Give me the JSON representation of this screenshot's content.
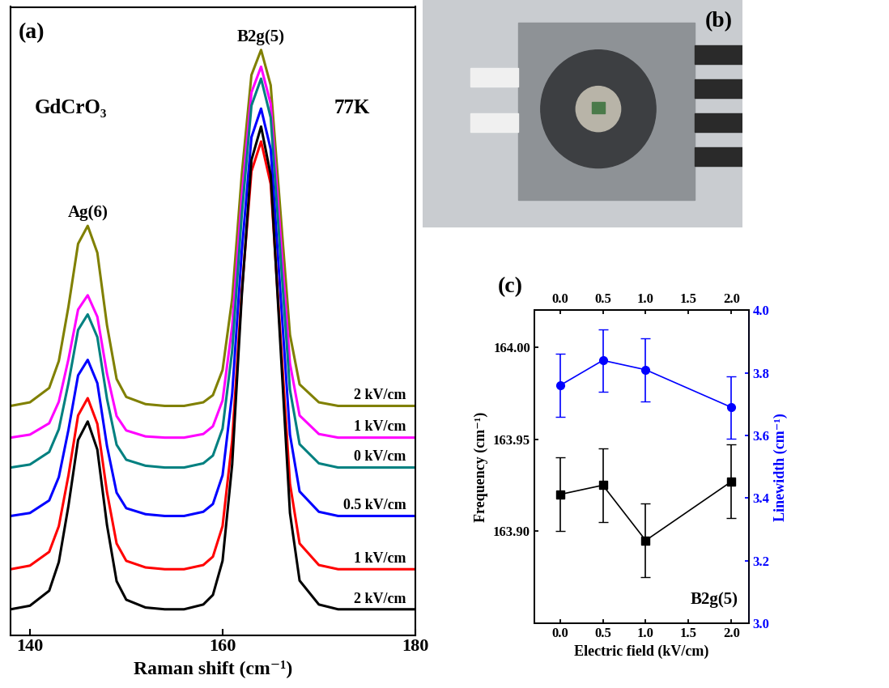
{
  "chart_data": [
    {
      "type": "line",
      "panel": "(a)",
      "x_label": "Raman shift (cm⁻¹)",
      "compound": "GdCrO₃",
      "temperature": "77K",
      "peaks": [
        {
          "label": "Ag(6)",
          "x": 146
        },
        {
          "label": "B2g(5)",
          "x": 164
        }
      ],
      "xlim": [
        138,
        180
      ],
      "xticks": [
        140,
        160,
        180
      ],
      "ylim": [
        0,
        105
      ],
      "yticks": [],
      "tick_labels": "x",
      "x": [
        138,
        140,
        142,
        143,
        144,
        145,
        146,
        147,
        148,
        149,
        150,
        152,
        154,
        156,
        158,
        159,
        160,
        161,
        162,
        163,
        164,
        165,
        166,
        167,
        168,
        170,
        172,
        174,
        176,
        178,
        180
      ],
      "series": [
        {
          "name": "2 kV/cm",
          "color": "#808000",
          "values": [
            38.3,
            38.9,
            41.3,
            45.8,
            54.9,
            65.4,
            68.4,
            63.9,
            51.8,
            42.8,
            39.8,
            38.6,
            38.3,
            38.3,
            38.9,
            40.1,
            44.3,
            56.2,
            77,
            93.6,
            97.8,
            91.9,
            71,
            50.2,
            41.9,
            38.9,
            38.3,
            38.3,
            38.3,
            38.3,
            38.3
          ]
        },
        {
          "name": "1 kV/cm",
          "color": "#ff00ff",
          "values": [
            33,
            33.5,
            35.4,
            39,
            46.1,
            54.4,
            56.8,
            53.2,
            43.7,
            36.6,
            34.2,
            33.2,
            33,
            33,
            33.6,
            34.9,
            39.2,
            51.6,
            73.3,
            90.7,
            95,
            88.8,
            67.1,
            45.4,
            36.7,
            33.6,
            33,
            33,
            33,
            33,
            33
          ]
        },
        {
          "name": "0 kV/cm",
          "color": "#008080",
          "values": [
            28,
            28.5,
            30.6,
            34.4,
            42.1,
            51.0,
            53.6,
            49.8,
            39.5,
            31.8,
            29.3,
            28.3,
            28,
            28,
            28.7,
            30,
            34.5,
            47.5,
            70.3,
            88.5,
            93,
            86.5,
            63.8,
            41,
            31.9,
            28.7,
            28,
            28,
            28,
            28,
            28
          ]
        },
        {
          "name": "0.5 kV/cm",
          "color": "#0000ff",
          "values": [
            19.9,
            20.4,
            22.5,
            26.4,
            34.3,
            43.4,
            46.0,
            42.1,
            31.6,
            23.8,
            21.2,
            20.2,
            19.9,
            19.9,
            20.6,
            21.9,
            26.7,
            40.3,
            64.2,
            83.2,
            88.0,
            81.2,
            57.4,
            33.5,
            24.0,
            20.6,
            19.9,
            19.9,
            19.9,
            19.9,
            19.9
          ]
        },
        {
          "name": "1 kV/cm",
          "color": "#ff0000",
          "values": [
            11,
            11.6,
            13.9,
            18.2,
            26.7,
            36.7,
            39.6,
            35.3,
            23.9,
            15.3,
            12.4,
            11.3,
            11,
            11,
            11.7,
            13.1,
            18.2,
            32.5,
            57.5,
            77.5,
            82.5,
            75.4,
            50.3,
            25.3,
            15.3,
            11.7,
            11,
            11,
            11,
            11,
            11
          ]
        },
        {
          "name": "2 kV/cm",
          "color": "#000000",
          "values": [
            4.3,
            4.9,
            7.4,
            12.2,
            21.6,
            32.6,
            35.7,
            31.0,
            18.4,
            9.0,
            5.9,
            4.6,
            4.3,
            4.3,
            5.1,
            6.7,
            12.4,
            28.5,
            56.8,
            79.4,
            85.0,
            76.9,
            48.7,
            20.4,
            9.1,
            5.1,
            4.3,
            4.3,
            4.3,
            4.3,
            4.3
          ]
        }
      ]
    },
    {
      "type": "image",
      "panel": "(b)"
    },
    {
      "type": "line",
      "panel": "(c)",
      "x_label": "Electric field (kV/cm)",
      "y_label": "Frequency (cm⁻¹)",
      "y2_label": "Linewidth (cm⁻¹)",
      "mode": "B2g(5)",
      "x": [
        0,
        0.5,
        1,
        2
      ],
      "xlim": [
        -0.3,
        2.2
      ],
      "xticks": [
        {
          "value": 0,
          "label": "0.0"
        },
        {
          "value": 0.5,
          "label": "0.5"
        },
        {
          "value": 1,
          "label": "1.0"
        },
        {
          "value": 1.5,
          "label": "1.5"
        },
        {
          "value": 2,
          "label": "2.0"
        }
      ],
      "ylim": [
        163.85,
        164.02
      ],
      "yticks": [
        {
          "value": 163.9,
          "label": "163.90"
        },
        {
          "value": 163.95,
          "label": "163.95"
        },
        {
          "value": 164,
          "label": "164.00"
        }
      ],
      "y2lim": [
        3.0,
        4.0
      ],
      "y2ticks": [
        {
          "value": 3.0,
          "label": "3.0"
        },
        {
          "value": 3.2,
          "label": "3.2"
        },
        {
          "value": 3.4,
          "label": "3.4"
        },
        {
          "value": 3.6,
          "label": "3.6"
        },
        {
          "value": 3.8,
          "label": "3.8"
        },
        {
          "value": 4.0,
          "label": "4.0"
        }
      ],
      "series": [
        {
          "color": "#000000",
          "marker": "square",
          "values": [
            163.92,
            163.925,
            163.895,
            163.927
          ],
          "errors": [
            0.02,
            0.02,
            0.02,
            0.02
          ]
        },
        {
          "color": "#0000ff",
          "marker": "circle",
          "axis": "y2",
          "values": [
            3.76,
            3.84,
            3.81,
            3.69
          ],
          "errors": [
            0.1,
            0.1,
            0.1,
            0.1
          ]
        }
      ]
    }
  ]
}
